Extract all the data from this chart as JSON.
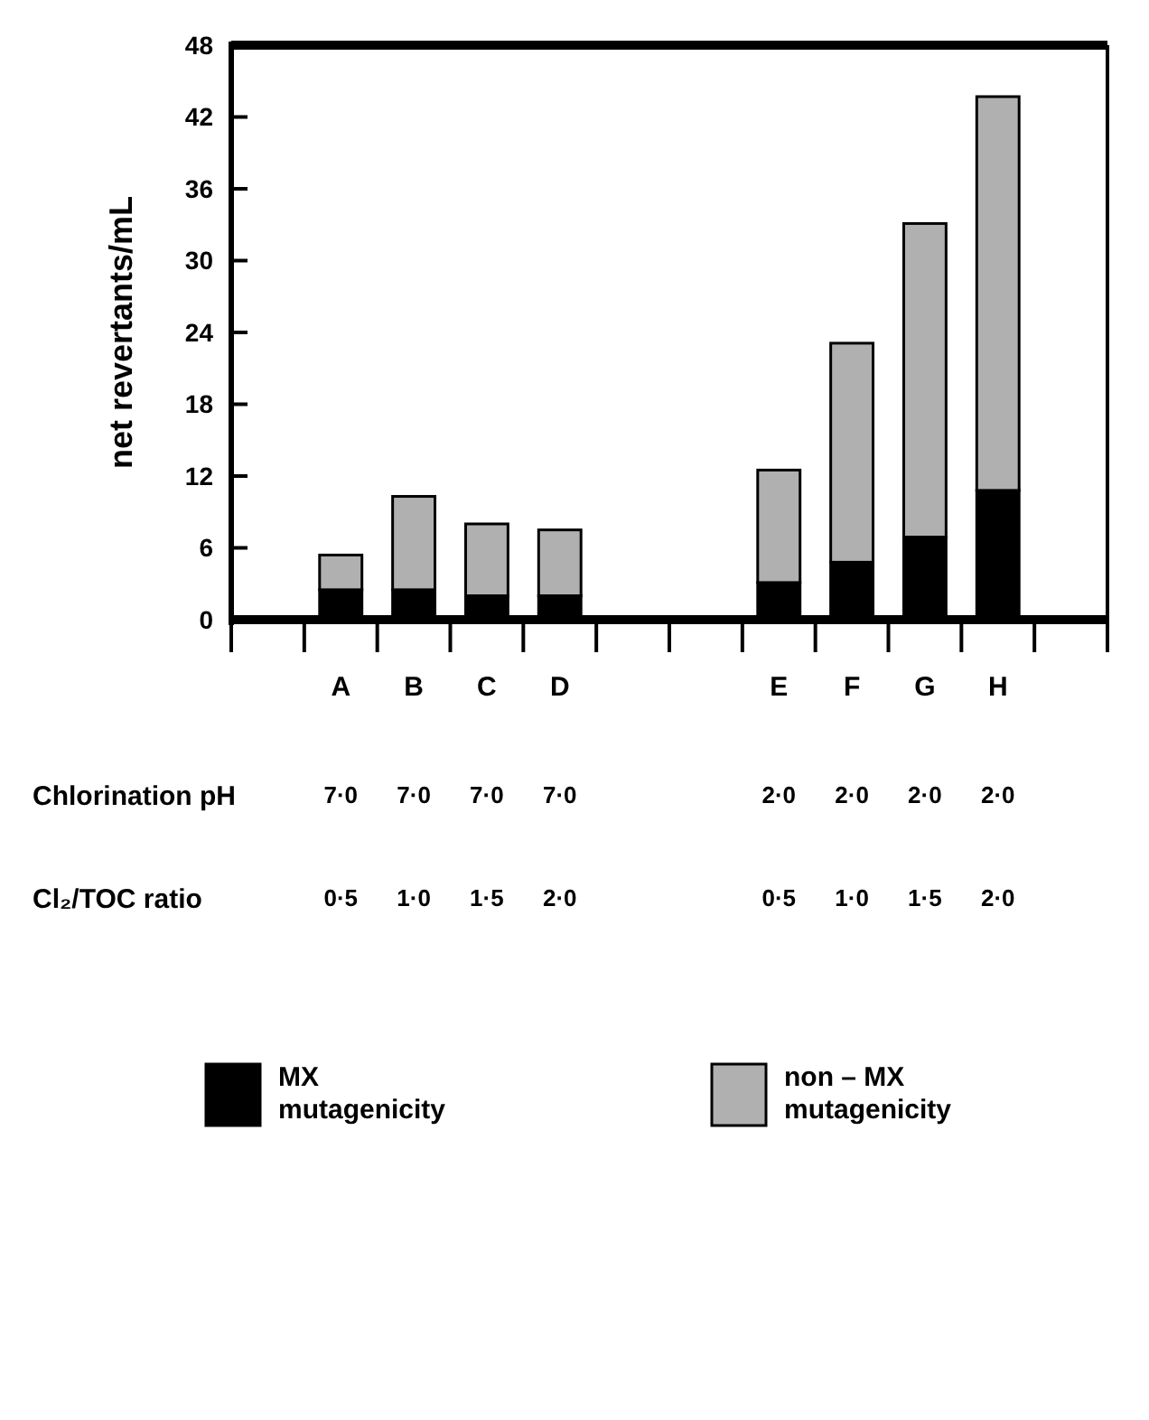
{
  "chart_data": {
    "type": "bar",
    "stacked": true,
    "ylabel": "net revertants/mL",
    "categories": [
      null,
      "A",
      "B",
      "C",
      "D",
      null,
      null,
      "E",
      "F",
      "G",
      "H",
      null
    ],
    "series": [
      {
        "name": "MX mutagenicity",
        "color": "#000000",
        "values": [
          null,
          2.5,
          2.5,
          2.0,
          2.0,
          null,
          null,
          3.1,
          4.8,
          6.9,
          10.8,
          null
        ]
      },
      {
        "name": "non – MX mutagenicity",
        "color": "#b0b0b0",
        "values": [
          null,
          2.9,
          7.8,
          6.0,
          5.5,
          null,
          null,
          9.4,
          18.3,
          26.2,
          32.9,
          null
        ]
      }
    ],
    "ylim": [
      0,
      48
    ],
    "yticks": [
      0,
      6,
      12,
      18,
      24,
      30,
      36,
      42,
      48
    ],
    "grid": false,
    "legend": "bottom",
    "annotations": [
      "Chlorination pH",
      "Cl₂/TOC ratio",
      "7·0",
      "7·0",
      "7·0",
      "7·0",
      "2·0",
      "2·0",
      "2·0",
      "2·0",
      "0·5",
      "1·0",
      "1·5",
      "2·0",
      "0·5",
      "1·0",
      "1·5",
      "2·0"
    ]
  }
}
